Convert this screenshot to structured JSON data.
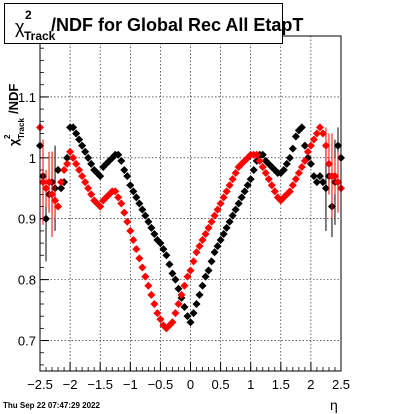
{
  "title": {
    "chi": "χ",
    "sup": "2",
    "sub": "Track",
    "main": "/NDF for Global Rec All EtapT"
  },
  "ylabel": {
    "chi": "χ",
    "sup": "2",
    "sub": "Track",
    "rest": "/NDF"
  },
  "xlabel": "η",
  "date": "Thu Sep 22 07:47:29 2022",
  "colors": {
    "black_series": "#000000",
    "red_series": "#ff0000",
    "grid": "#000000"
  },
  "chart_data": {
    "type": "scatter",
    "xlim": [
      -2.5,
      2.5
    ],
    "ylim": [
      0.65,
      1.2
    ],
    "grid": true,
    "xticks": [
      -2.5,
      -2,
      -1.5,
      -1,
      -0.5,
      0,
      0.5,
      1,
      1.5,
      2,
      2.5
    ],
    "xtick_labels": [
      "−2.5",
      "−2",
      "−1.5",
      "−1",
      "−0.5",
      "0",
      "0.5",
      "1",
      "1.5",
      "2",
      "2.5"
    ],
    "yticks": [
      0.7,
      0.8,
      0.9,
      1,
      1.1
    ],
    "ytick_labels": [
      "0.7",
      "0.8",
      "0.9",
      "1",
      "1.1"
    ],
    "series": [
      {
        "color": "#000000",
        "x": [
          -2.5,
          -2.45,
          -2.4,
          -2.35,
          -2.3,
          -2.25,
          -2.2,
          -2.15,
          -2.1,
          -2.05,
          -2.0,
          -1.95,
          -1.9,
          -1.85,
          -1.8,
          -1.75,
          -1.7,
          -1.65,
          -1.6,
          -1.55,
          -1.5,
          -1.45,
          -1.4,
          -1.35,
          -1.3,
          -1.25,
          -1.2,
          -1.15,
          -1.1,
          -1.05,
          -1.0,
          -0.95,
          -0.9,
          -0.85,
          -0.8,
          -0.75,
          -0.7,
          -0.65,
          -0.6,
          -0.55,
          -0.5,
          -0.45,
          -0.4,
          -0.35,
          -0.3,
          -0.25,
          -0.2,
          -0.15,
          -0.1,
          -0.05,
          0.0,
          0.05,
          0.1,
          0.15,
          0.2,
          0.25,
          0.3,
          0.35,
          0.4,
          0.45,
          0.5,
          0.55,
          0.6,
          0.65,
          0.7,
          0.75,
          0.8,
          0.85,
          0.9,
          0.95,
          1.0,
          1.05,
          1.1,
          1.15,
          1.2,
          1.25,
          1.3,
          1.35,
          1.4,
          1.45,
          1.5,
          1.55,
          1.6,
          1.65,
          1.7,
          1.75,
          1.8,
          1.85,
          1.9,
          1.95,
          2.0,
          2.05,
          2.1,
          2.15,
          2.2,
          2.25,
          2.3,
          2.35,
          2.4,
          2.45,
          2.5
        ],
        "y": [
          1.02,
          0.97,
          0.9,
          0.94,
          0.96,
          0.95,
          0.98,
          0.95,
          0.96,
          1.0,
          1.05,
          1.05,
          1.04,
          1.03,
          1.02,
          1.01,
          1.0,
          0.99,
          0.98,
          0.975,
          0.97,
          0.985,
          0.99,
          0.995,
          1.0,
          1.005,
          1.005,
          0.995,
          0.98,
          0.97,
          0.955,
          0.945,
          0.935,
          0.925,
          0.915,
          0.905,
          0.895,
          0.885,
          0.875,
          0.865,
          0.86,
          0.85,
          0.84,
          0.825,
          0.81,
          0.8,
          0.785,
          0.77,
          0.755,
          0.74,
          0.73,
          0.745,
          0.76,
          0.775,
          0.79,
          0.805,
          0.815,
          0.83,
          0.845,
          0.855,
          0.865,
          0.875,
          0.885,
          0.895,
          0.905,
          0.915,
          0.925,
          0.935,
          0.945,
          0.955,
          0.965,
          0.98,
          0.995,
          1.005,
          1.005,
          0.995,
          0.99,
          0.985,
          0.98,
          0.975,
          0.975,
          0.98,
          0.99,
          1.0,
          1.015,
          1.035,
          1.045,
          1.05,
          1.02,
          1.0,
          0.99,
          0.97,
          0.96,
          0.97,
          0.96,
          0.95,
          0.97,
          0.92,
          0.96,
          1.02,
          1.0
        ]
      },
      {
        "color": "#ff0000",
        "x": [
          -2.5,
          -2.45,
          -2.4,
          -2.35,
          -2.3,
          -2.25,
          -2.2,
          -2.15,
          -2.1,
          -2.05,
          -2.0,
          -1.95,
          -1.9,
          -1.85,
          -1.8,
          -1.75,
          -1.7,
          -1.65,
          -1.6,
          -1.55,
          -1.5,
          -1.45,
          -1.4,
          -1.35,
          -1.3,
          -1.25,
          -1.2,
          -1.15,
          -1.1,
          -1.05,
          -1.0,
          -0.95,
          -0.9,
          -0.85,
          -0.8,
          -0.75,
          -0.7,
          -0.65,
          -0.6,
          -0.55,
          -0.5,
          -0.45,
          -0.4,
          -0.35,
          -0.3,
          -0.25,
          -0.2,
          -0.15,
          -0.1,
          -0.05,
          0.0,
          0.05,
          0.1,
          0.15,
          0.2,
          0.25,
          0.3,
          0.35,
          0.4,
          0.45,
          0.5,
          0.55,
          0.6,
          0.65,
          0.7,
          0.75,
          0.8,
          0.85,
          0.9,
          0.95,
          1.0,
          1.05,
          1.1,
          1.15,
          1.2,
          1.25,
          1.3,
          1.35,
          1.4,
          1.45,
          1.5,
          1.55,
          1.6,
          1.65,
          1.7,
          1.75,
          1.8,
          1.85,
          1.9,
          1.95,
          2.0,
          2.05,
          2.1,
          2.15,
          2.2,
          2.25,
          2.3,
          2.35,
          2.4,
          2.45,
          2.5
        ],
        "y": [
          1.05,
          0.96,
          0.95,
          0.96,
          0.94,
          0.93,
          0.92,
          0.96,
          0.98,
          0.99,
          1.01,
          1.0,
          0.99,
          0.98,
          0.97,
          0.96,
          0.95,
          0.94,
          0.93,
          0.925,
          0.92,
          0.93,
          0.935,
          0.94,
          0.945,
          0.945,
          0.935,
          0.925,
          0.91,
          0.895,
          0.88,
          0.865,
          0.85,
          0.835,
          0.82,
          0.805,
          0.79,
          0.775,
          0.76,
          0.745,
          0.735,
          0.725,
          0.72,
          0.725,
          0.73,
          0.745,
          0.76,
          0.775,
          0.79,
          0.805,
          0.815,
          0.83,
          0.845,
          0.855,
          0.865,
          0.875,
          0.885,
          0.895,
          0.905,
          0.915,
          0.925,
          0.935,
          0.945,
          0.955,
          0.965,
          0.975,
          0.985,
          0.99,
          0.995,
          1.0,
          1.005,
          1.005,
          1.005,
          0.995,
          0.985,
          0.975,
          0.965,
          0.955,
          0.945,
          0.935,
          0.93,
          0.935,
          0.94,
          0.945,
          0.955,
          0.965,
          0.975,
          0.985,
          0.995,
          1.01,
          1.02,
          1.03,
          1.04,
          1.05,
          1.04,
          1.02,
          0.99,
          0.97,
          0.97,
          0.96,
          0.95
        ]
      }
    ]
  }
}
